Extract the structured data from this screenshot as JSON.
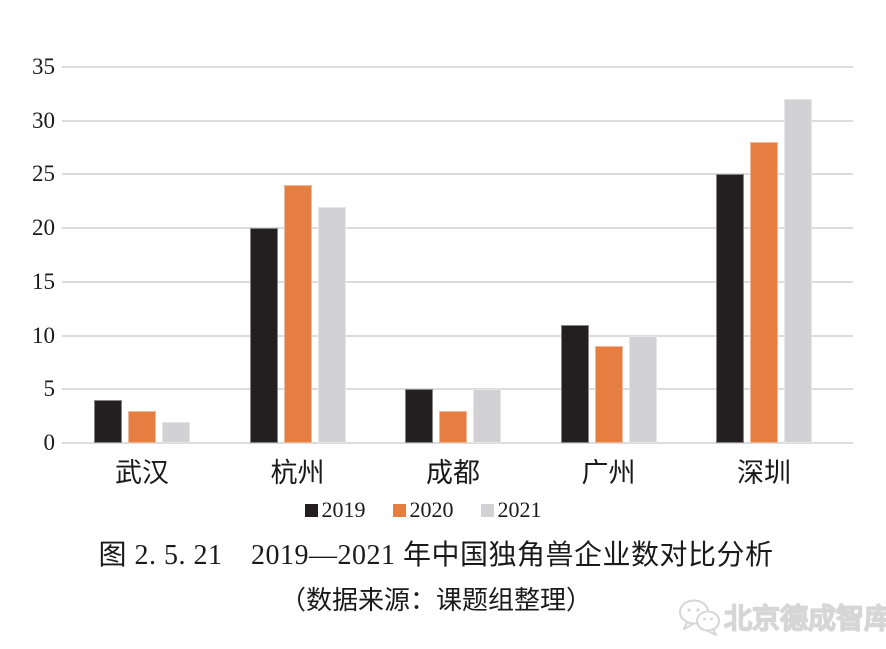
{
  "chart_data": {
    "type": "bar",
    "title": "图 2. 5. 21　2019—2021 年中国独角兽企业数对比分析",
    "categories": [
      "武汉",
      "杭州",
      "成都",
      "广州",
      "深圳"
    ],
    "series": [
      {
        "name": "2019",
        "color": "#231f20",
        "values": [
          4,
          20,
          5,
          11,
          25
        ]
      },
      {
        "name": "2020",
        "color": "#e67e42",
        "values": [
          3,
          24,
          3,
          9,
          28
        ]
      },
      {
        "name": "2021",
        "color": "#d2d2d4",
        "values": [
          2,
          22,
          5,
          10,
          32
        ]
      }
    ],
    "xlabel": "",
    "ylabel": "",
    "ylim": [
      0,
      35
    ],
    "yticks": [
      0,
      5,
      10,
      15,
      20,
      25,
      30,
      35
    ],
    "grid": "horizontal",
    "gridline_color": "#dcdcdc",
    "legend_position": "bottom"
  },
  "caption": {
    "title": "图 2. 5. 21　2019—2021 年中国独角兽企业数对比分析",
    "source": "（数据来源：课题组整理）"
  },
  "watermark": {
    "icon": "wechat-bubbles-icon",
    "label": "北京德成智库"
  }
}
